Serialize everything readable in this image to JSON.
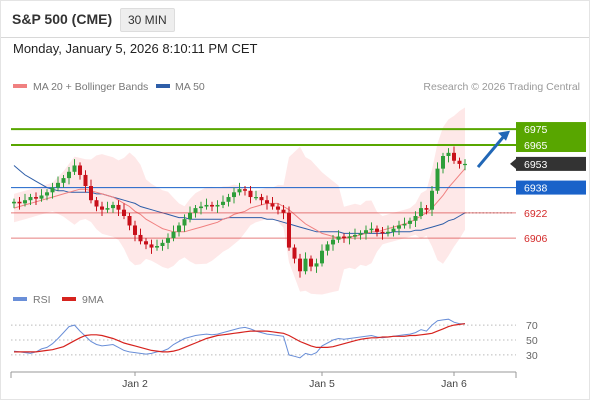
{
  "header": {
    "title": "S&P 500 (CME)",
    "timeframe": "30 MIN"
  },
  "datetime": "Monday, January 5, 2026 8:10:11 PM CET",
  "legend": {
    "ma20": "MA 20 + Bollinger Bands",
    "ma50": "MA 50",
    "credit": "Research © 2026 Trading Central",
    "rsi": "RSI",
    "ma9": "9MA"
  },
  "colors": {
    "resistance": "#58a600",
    "pivot": "#1a62c9",
    "support": "#d42a2a",
    "last": "#333333",
    "ma20": "#f08080",
    "ma50": "#2e5ea8",
    "band": "#fde0e0",
    "candle_up": "#2e9e3a",
    "candle_down": "#c8101a",
    "rsi": "#6a8fd8",
    "ma9": "#d6231e",
    "arrow": "#2167b6"
  },
  "chart_data": {
    "type": "candlestick",
    "title": "S&P 500 (CME)",
    "timeframe": "30 MIN",
    "x_ticks": [
      "Jan 2",
      "Jan 5",
      "Jan 6"
    ],
    "ylim": [
      6882,
      6996
    ],
    "levels": [
      {
        "label": "6975",
        "value": 6975,
        "kind": "resistance"
      },
      {
        "label": "6965",
        "value": 6965,
        "kind": "resistance"
      },
      {
        "label": "6953",
        "value": 6953,
        "kind": "last"
      },
      {
        "label": "6938",
        "value": 6938,
        "kind": "pivot"
      },
      {
        "label": "6922",
        "value": 6922,
        "kind": "support"
      },
      {
        "label": "6906",
        "value": 6906,
        "kind": "support"
      }
    ],
    "indicators": [
      "MA 20 + Bollinger Bands",
      "MA 50"
    ],
    "close": [
      6929,
      6928,
      6930,
      6932,
      6931,
      6933,
      6935,
      6938,
      6941,
      6944,
      6948,
      6952,
      6946,
      6939,
      6930,
      6926,
      6924,
      6925,
      6927,
      6924,
      6920,
      6914,
      6908,
      6904,
      6902,
      6900,
      6901,
      6903,
      6906,
      6910,
      6914,
      6918,
      6922,
      6925,
      6926,
      6927,
      6926,
      6927,
      6929,
      6932,
      6935,
      6937,
      6936,
      6932,
      6932,
      6930,
      6928,
      6926,
      6924,
      6922,
      6900,
      6893,
      6885,
      6893,
      6888,
      6890,
      6898,
      6902,
      6905,
      6907,
      6906,
      6907,
      6908,
      6909,
      6911,
      6912,
      6910,
      6909,
      6910,
      6912,
      6914,
      6915,
      6917,
      6920,
      6925,
      6924,
      6936,
      6950,
      6958,
      6960,
      6955,
      6953,
      6953
    ],
    "ma20": [
      6925,
      6926,
      6927,
      6928,
      6929,
      6930,
      6931,
      6932,
      6933,
      6934,
      6935,
      6936,
      6937,
      6937,
      6936,
      6935,
      6934,
      6933,
      6932,
      6930,
      6928,
      6926,
      6923,
      6921,
      6918,
      6916,
      6914,
      6912,
      6911,
      6910,
      6910,
      6910,
      6911,
      6912,
      6913,
      6914,
      6915,
      6916,
      6918,
      6919,
      6921,
      6922,
      6923,
      6925,
      6926,
      6927,
      6928,
      6928,
      6928,
      6926,
      6924,
      6921,
      6918,
      6915,
      6913,
      6911,
      6909,
      6908,
      6907,
      6906,
      6906,
      6907,
      6907,
      6908,
      6909,
      6910,
      6910,
      6911,
      6912,
      6913,
      6914,
      6915,
      6916,
      6918,
      6920,
      6922,
      6925,
      6929,
      6933,
      6938,
      6942,
      6946,
      6950
    ],
    "ma50": [
      6952,
      6949,
      6946,
      6944,
      6942,
      6940,
      6938,
      6937,
      6936,
      6936,
      6935,
      6935,
      6935,
      6935,
      6935,
      6934,
      6934,
      6933,
      6932,
      6931,
      6930,
      6929,
      6928,
      6926,
      6925,
      6924,
      6923,
      6922,
      6921,
      6920,
      6919,
      6919,
      6918,
      6918,
      6918,
      6918,
      6918,
      6918,
      6918,
      6919,
      6919,
      6919,
      6919,
      6919,
      6919,
      6919,
      6918,
      6918,
      6917,
      6916,
      6915,
      6914,
      6913,
      6912,
      6911,
      6910,
      6910,
      6910,
      6910,
      6910,
      6909,
      6909,
      6909,
      6909,
      6909,
      6909,
      6909,
      6909,
      6909,
      6910,
      6910,
      6910,
      6910,
      6911,
      6911,
      6912,
      6913,
      6914,
      6915,
      6917,
      6918,
      6920,
      6922
    ],
    "rsi_panel": {
      "ylim": [
        15,
        85
      ],
      "ticks": [
        70,
        50,
        30
      ],
      "series": [
        {
          "name": "RSI",
          "values": [
            35,
            34,
            33,
            32,
            34,
            38,
            40,
            45,
            52,
            60,
            68,
            70,
            62,
            55,
            48,
            44,
            42,
            43,
            44,
            40,
            36,
            34,
            33,
            32,
            31,
            32,
            34,
            35,
            38,
            44,
            48,
            52,
            54,
            56,
            57,
            58,
            57,
            58,
            60,
            62,
            64,
            66,
            67,
            65,
            62,
            60,
            58,
            57,
            56,
            55,
            30,
            28,
            26,
            32,
            30,
            33,
            42,
            46,
            50,
            52,
            51,
            52,
            53,
            54,
            55,
            56,
            54,
            53,
            54,
            55,
            56,
            57,
            58,
            60,
            64,
            62,
            70,
            76,
            77,
            78,
            74,
            72,
            72
          ]
        },
        {
          "name": "9MA",
          "values": [
            34,
            34,
            34,
            34,
            34,
            35,
            36,
            37,
            39,
            41,
            45,
            49,
            53,
            56,
            57,
            57,
            56,
            54,
            52,
            49,
            46,
            44,
            42,
            40,
            38,
            36,
            35,
            34,
            34,
            35,
            37,
            40,
            43,
            46,
            49,
            52,
            54,
            56,
            57,
            58,
            59,
            60,
            61,
            62,
            62,
            62,
            62,
            61,
            60,
            59,
            56,
            52,
            48,
            45,
            42,
            40,
            40,
            40,
            41,
            43,
            45,
            47,
            49,
            51,
            52,
            53,
            53,
            54,
            54,
            55,
            55,
            55,
            56,
            56,
            57,
            58,
            59,
            62,
            65,
            68,
            70,
            71,
            72
          ]
        }
      ]
    }
  }
}
